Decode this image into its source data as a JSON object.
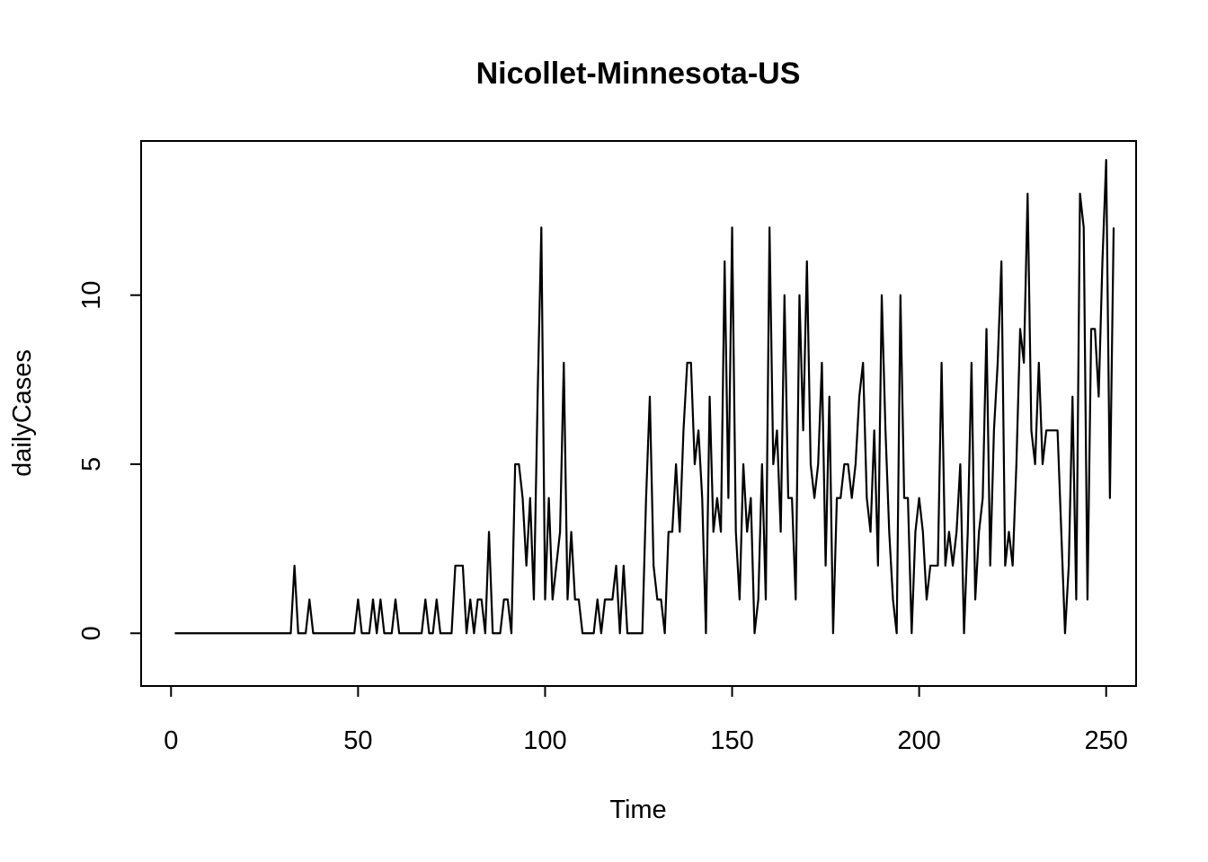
{
  "chart_data": {
    "type": "line",
    "title": "Nicollet-Minnesota-US",
    "xlabel": "Time",
    "ylabel": "dailyCases",
    "xlim": [
      -8,
      258
    ],
    "ylim": [
      -1.56,
      14.56
    ],
    "x_ticks": [
      0,
      50,
      100,
      150,
      200,
      250
    ],
    "y_ticks": [
      0,
      5,
      10
    ],
    "grid": false,
    "legend": "none",
    "line_color": "#000000",
    "series": [
      {
        "x_start": 1,
        "x_step": 1,
        "values": [
          0,
          0,
          0,
          0,
          0,
          0,
          0,
          0,
          0,
          0,
          0,
          0,
          0,
          0,
          0,
          0,
          0,
          0,
          0,
          0,
          0,
          0,
          0,
          0,
          0,
          0,
          0,
          0,
          0,
          0,
          0,
          0,
          2,
          0,
          0,
          0,
          1,
          0,
          0,
          0,
          0,
          0,
          0,
          0,
          0,
          0,
          0,
          0,
          0,
          1,
          0,
          0,
          0,
          1,
          0,
          1,
          0,
          0,
          0,
          1,
          0,
          0,
          0,
          0,
          0,
          0,
          0,
          1,
          0,
          0,
          1,
          0,
          0,
          0,
          0,
          2,
          2,
          2,
          0,
          1,
          0,
          1,
          1,
          0,
          3,
          0,
          0,
          0,
          1,
          1,
          0,
          5,
          5,
          4,
          2,
          4,
          1,
          7,
          12,
          1,
          4,
          1,
          2,
          3,
          8,
          1,
          3,
          1,
          1,
          0,
          0,
          0,
          0,
          1,
          0,
          1,
          1,
          1,
          2,
          0,
          2,
          0,
          0,
          0,
          0,
          0,
          4,
          7,
          2,
          1,
          1,
          0,
          3,
          3,
          5,
          3,
          6,
          8,
          8,
          5,
          6,
          4,
          0,
          7,
          3,
          4,
          3,
          11,
          4,
          12,
          3,
          1,
          5,
          3,
          4,
          0,
          1,
          5,
          1,
          12,
          5,
          6,
          3,
          10,
          4,
          4,
          1,
          10,
          6,
          11,
          5,
          4,
          5,
          8,
          2,
          7,
          0,
          4,
          4,
          5,
          5,
          4,
          5,
          7,
          8,
          4,
          3,
          6,
          2,
          10,
          6,
          3,
          1,
          0,
          10,
          4,
          4,
          0,
          3,
          4,
          3,
          1,
          2,
          2,
          2,
          8,
          2,
          3,
          2,
          3,
          5,
          0,
          3,
          8,
          1,
          3,
          4,
          9,
          2,
          6,
          8,
          11,
          2,
          3,
          2,
          5,
          9,
          8,
          13,
          6,
          5,
          8,
          5,
          6,
          6,
          6,
          6,
          3,
          0,
          2,
          7,
          1,
          13,
          12,
          1,
          9,
          9,
          7,
          11,
          14,
          4,
          12
        ]
      }
    ]
  }
}
